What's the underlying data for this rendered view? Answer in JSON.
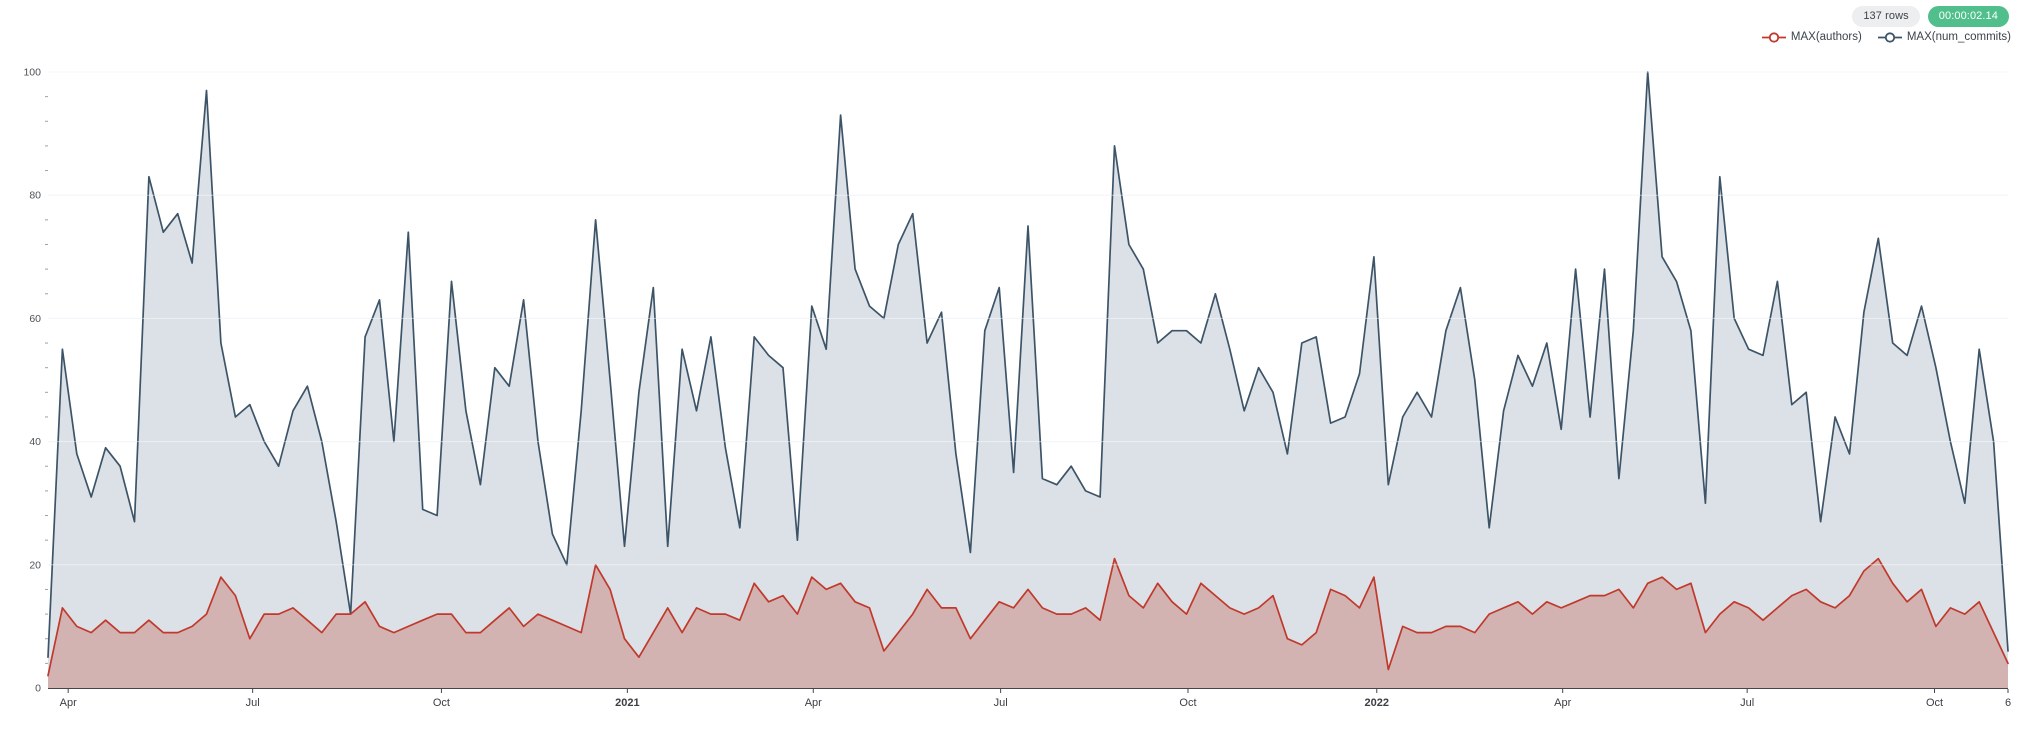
{
  "header": {
    "rows_badge": "137 rows",
    "timer_badge": "00:00:02.14",
    "rows_badge_bg": "#eceef0",
    "timer_badge_bg": "#50bf8c"
  },
  "legend": {
    "items": [
      {
        "label": "MAX(authors)",
        "color": "#c0392b"
      },
      {
        "label": "MAX(num_commits)",
        "color": "#3d5468"
      }
    ]
  },
  "chart_data": {
    "type": "area",
    "title": "",
    "xlabel": "",
    "ylabel": "",
    "x_unit": "week",
    "x_range_weeks": [
      0,
      136
    ],
    "x_axis_ticks": [
      {
        "label": "Apr",
        "week": 1.4,
        "bold": false
      },
      {
        "label": "Jul",
        "week": 14.2,
        "bold": false
      },
      {
        "label": "Oct",
        "week": 27.3,
        "bold": false
      },
      {
        "label": "2021",
        "week": 40.2,
        "bold": true
      },
      {
        "label": "Apr",
        "week": 53.1,
        "bold": false
      },
      {
        "label": "Jul",
        "week": 66.1,
        "bold": false
      },
      {
        "label": "Oct",
        "week": 79.1,
        "bold": false
      },
      {
        "label": "2022",
        "week": 92.2,
        "bold": true
      },
      {
        "label": "Apr",
        "week": 105.1,
        "bold": false
      },
      {
        "label": "Jul",
        "week": 117.9,
        "bold": false
      },
      {
        "label": "Oct",
        "week": 130.9,
        "bold": false
      },
      {
        "label": "6",
        "week": 136,
        "bold": false
      }
    ],
    "y_axis": {
      "ticks": [
        0,
        20,
        40,
        60,
        80,
        100
      ],
      "minor_step": 4,
      "range": [
        0,
        100
      ]
    },
    "grid": true,
    "legend_position": "top-right",
    "series": [
      {
        "name": "MAX(num_commits)",
        "line_color": "#3d5468",
        "fill_color": "#dbe1e6",
        "values": [
          5,
          55,
          38,
          31,
          39,
          36,
          27,
          83,
          74,
          77,
          69,
          97,
          56,
          44,
          46,
          40,
          36,
          45,
          49,
          40,
          27,
          12,
          57,
          63,
          40,
          74,
          29,
          28,
          66,
          45,
          33,
          52,
          49,
          63,
          40,
          25,
          20,
          45,
          76,
          50,
          23,
          48,
          65,
          23,
          55,
          45,
          57,
          39,
          26,
          57,
          54,
          52,
          24,
          62,
          55,
          93,
          68,
          62,
          60,
          72,
          77,
          56,
          61,
          38,
          22,
          58,
          65,
          35,
          75,
          34,
          33,
          36,
          32,
          31,
          88,
          72,
          68,
          56,
          58,
          58,
          56,
          64,
          55,
          45,
          52,
          48,
          38,
          56,
          57,
          43,
          44,
          51,
          70,
          33,
          44,
          48,
          44,
          58,
          65,
          50,
          26,
          45,
          54,
          49,
          56,
          42,
          68,
          44,
          68,
          34,
          58,
          100,
          70,
          66,
          58,
          30,
          83,
          60,
          55,
          54,
          66,
          46,
          48,
          27,
          44,
          38,
          61,
          73,
          56,
          54,
          62,
          52,
          40,
          30,
          55,
          40,
          6
        ]
      },
      {
        "name": "MAX(authors)",
        "line_color": "#c0392b",
        "fill_color": "rgba(192,57,43,0.28)",
        "values": [
          2,
          13,
          10,
          9,
          11,
          9,
          9,
          11,
          9,
          9,
          10,
          12,
          18,
          15,
          8,
          12,
          12,
          13,
          11,
          9,
          12,
          12,
          14,
          10,
          9,
          10,
          11,
          12,
          12,
          9,
          9,
          11,
          13,
          10,
          12,
          11,
          10,
          9,
          20,
          16,
          8,
          5,
          9,
          13,
          9,
          13,
          12,
          12,
          11,
          17,
          14,
          15,
          12,
          18,
          16,
          17,
          14,
          13,
          6,
          9,
          12,
          16,
          13,
          13,
          8,
          11,
          14,
          13,
          16,
          13,
          12,
          12,
          13,
          11,
          21,
          15,
          13,
          17,
          14,
          12,
          17,
          15,
          13,
          12,
          13,
          15,
          8,
          7,
          9,
          16,
          15,
          13,
          18,
          3,
          10,
          9,
          9,
          10,
          10,
          9,
          12,
          13,
          14,
          12,
          14,
          13,
          14,
          15,
          15,
          16,
          13,
          17,
          18,
          16,
          17,
          9,
          12,
          14,
          13,
          11,
          13,
          15,
          16,
          14,
          13,
          15,
          19,
          21,
          17,
          14,
          16,
          10,
          13,
          12,
          14,
          9,
          4
        ]
      }
    ]
  }
}
